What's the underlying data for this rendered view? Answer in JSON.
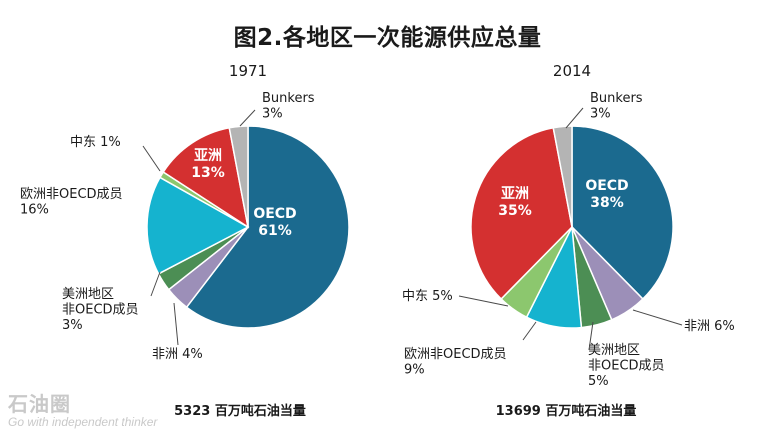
{
  "title": "图2.各地区一次能源供应总量",
  "watermark": {
    "logo": "石油圈",
    "tagline": "Go with independent thinker"
  },
  "chart_data": [
    {
      "type": "pie",
      "title": "1971",
      "total_label": "5323 百万吨石油当量",
      "slices": [
        {
          "name": "OECD",
          "value": 61,
          "label": "61%",
          "color": "#1b6a8f"
        },
        {
          "name": "非洲",
          "value": 4,
          "label": "4%",
          "color": "#9c8fb8"
        },
        {
          "name": "美洲地区\n非OECD成员",
          "value": 3,
          "label": "3%",
          "color": "#4c8e54"
        },
        {
          "name": "欧洲非OECD成员",
          "value": 16,
          "label": "16%",
          "color": "#15b3cf"
        },
        {
          "name": "中东",
          "value": 1,
          "label": "1%",
          "color": "#8cc76e"
        },
        {
          "name": "亚洲",
          "value": 13,
          "label": "13%",
          "color": "#d43030"
        },
        {
          "name": "Bunkers",
          "value": 3,
          "label": "3%",
          "color": "#b4b4b4"
        }
      ]
    },
    {
      "type": "pie",
      "title": "2014",
      "total_label": "13699 百万吨石油当量",
      "slices": [
        {
          "name": "OECD",
          "value": 38,
          "label": "38%",
          "color": "#1b6a8f"
        },
        {
          "name": "非洲",
          "value": 6,
          "label": "6%",
          "color": "#9c8fb8"
        },
        {
          "name": "美洲地区\n非OECD成员",
          "value": 5,
          "label": "5%",
          "color": "#4c8e54"
        },
        {
          "name": "欧洲非OECD成员",
          "value": 9,
          "label": "9%",
          "color": "#15b3cf"
        },
        {
          "name": "中东",
          "value": 5,
          "label": "5%",
          "color": "#8cc76e"
        },
        {
          "name": "亚洲",
          "value": 35,
          "label": "35%",
          "color": "#d43030"
        },
        {
          "name": "Bunkers",
          "value": 3,
          "label": "3%",
          "color": "#b4b4b4"
        }
      ]
    }
  ]
}
